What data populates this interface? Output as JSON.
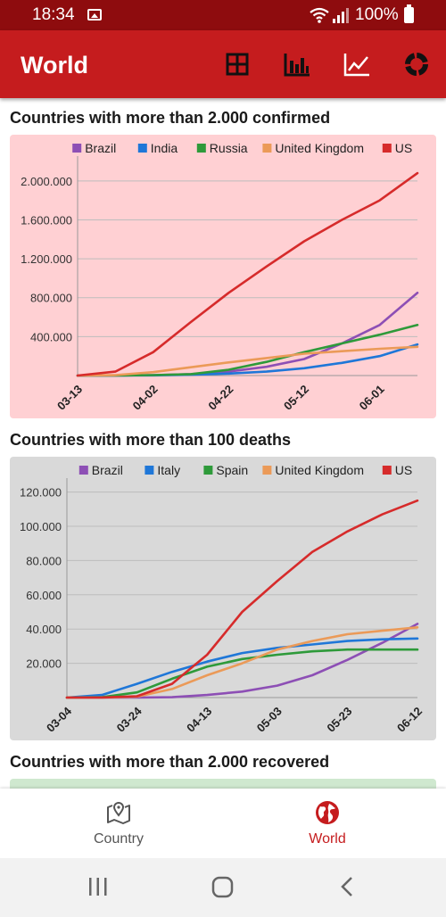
{
  "status_bar": {
    "time": "18:34",
    "battery": "100%"
  },
  "app_bar": {
    "title": "World",
    "actions": [
      "grid-icon",
      "bar-chart-icon",
      "line-chart-icon",
      "donut-chart-icon"
    ]
  },
  "colors": {
    "primary": "#c51c1e",
    "status_bar": "#8e0c0e",
    "Brazil": "#8d4fb5",
    "India": "#1f77d8",
    "Italy": "#1f77d8",
    "Russia": "#2e9a3a",
    "Spain": "#2e9a3a",
    "United Kingdom": "#eb9a58",
    "US": "#d62b2b"
  },
  "sections": {
    "confirmed_title": "Countries with more than 2.000 confirmed",
    "deaths_title": "Countries with more than 100 deaths",
    "recovered_title": "Countries with more than 2.000 recovered"
  },
  "chart_data": [
    {
      "type": "line",
      "title": "Countries with more than 2.000 confirmed",
      "background": "#ffd0d3",
      "xlabel": "",
      "ylabel": "",
      "x": [
        "03-13",
        "03-23",
        "04-02",
        "04-12",
        "04-22",
        "05-02",
        "05-12",
        "05-22",
        "06-01",
        "06-10"
      ],
      "x_tick_labels": [
        "03-13",
        "04-02",
        "04-22",
        "05-12",
        "06-01"
      ],
      "y_tick_labels": [
        "400.000",
        "800.000",
        "1.200.000",
        "1.600.000",
        "2.000.000"
      ],
      "ylim": [
        0,
        2200000
      ],
      "legend_position": "top",
      "grid": true,
      "series": [
        {
          "name": "Brazil",
          "values": [
            0,
            0,
            5000,
            15000,
            40000,
            90000,
            170000,
            330000,
            520000,
            850000
          ]
        },
        {
          "name": "India",
          "values": [
            0,
            0,
            2000,
            8000,
            20000,
            40000,
            75000,
            130000,
            200000,
            320000
          ]
        },
        {
          "name": "Russia",
          "values": [
            0,
            0,
            5000,
            15000,
            60000,
            140000,
            240000,
            330000,
            420000,
            520000
          ]
        },
        {
          "name": "United Kingdom",
          "values": [
            0,
            5000,
            35000,
            85000,
            135000,
            180000,
            225000,
            250000,
            275000,
            295000
          ]
        },
        {
          "name": "US",
          "values": [
            0,
            40000,
            240000,
            550000,
            850000,
            1120000,
            1380000,
            1600000,
            1800000,
            2080000
          ]
        }
      ]
    },
    {
      "type": "line",
      "title": "Countries with more than 100 deaths",
      "background": "#d9d9d9",
      "xlabel": "",
      "ylabel": "",
      "x": [
        "03-04",
        "03-14",
        "03-24",
        "04-03",
        "04-13",
        "04-23",
        "05-03",
        "05-13",
        "05-23",
        "06-02",
        "06-12"
      ],
      "x_tick_labels": [
        "03-04",
        "03-24",
        "04-13",
        "05-03",
        "05-23",
        "06-12"
      ],
      "y_tick_labels": [
        "20.000",
        "40.000",
        "60.000",
        "80.000",
        "100.000",
        "120.000"
      ],
      "ylim": [
        0,
        125000
      ],
      "legend_position": "top",
      "grid": true,
      "series": [
        {
          "name": "Brazil",
          "values": [
            0,
            0,
            0,
            200,
            1500,
            3500,
            7000,
            13000,
            22000,
            32000,
            43000
          ]
        },
        {
          "name": "Italy",
          "values": [
            0,
            1500,
            8000,
            15000,
            21000,
            26000,
            29000,
            31000,
            33000,
            34000,
            34500
          ]
        },
        {
          "name": "Spain",
          "values": [
            0,
            200,
            3000,
            11000,
            18000,
            22500,
            25000,
            27000,
            28000,
            28000,
            28000
          ]
        },
        {
          "name": "United Kingdom",
          "values": [
            0,
            0,
            500,
            5000,
            13000,
            20000,
            28000,
            33000,
            37000,
            39000,
            41000
          ]
        },
        {
          "name": "US",
          "values": [
            0,
            50,
            800,
            8000,
            25000,
            50000,
            68000,
            85000,
            97000,
            107000,
            115000
          ]
        }
      ]
    }
  ],
  "bottom_nav": {
    "items": [
      {
        "label": "Country",
        "icon": "map-pin-icon",
        "active": false
      },
      {
        "label": "World",
        "icon": "globe-icon",
        "active": true
      }
    ]
  }
}
